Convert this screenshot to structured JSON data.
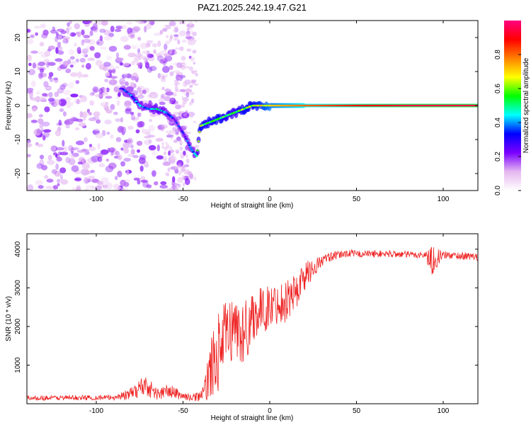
{
  "title": "PAZ1.2025.242.19.47.G21",
  "chart_data": [
    {
      "type": "heatmap",
      "title": "PAZ1.2025.242.19.47.G21",
      "xlabel": "Height of straight line (km)",
      "ylabel": "Frequency (Hz)",
      "xlim": [
        -140,
        120
      ],
      "ylim": [
        -25,
        25
      ],
      "xticks": [
        -100,
        -50,
        0,
        50,
        100
      ],
      "yticks": [
        -20,
        -10,
        0,
        10,
        20
      ],
      "colorbar": {
        "label": "Normalized spectral amplitude",
        "range": [
          0.0,
          1.0
        ],
        "ticks": [
          0.0,
          0.2,
          0.4,
          0.6,
          0.8
        ],
        "colors": [
          "#ffffff",
          "#e6b8f0",
          "#7b00ff",
          "#0000ff",
          "#00ffff",
          "#00ff00",
          "#ffff00",
          "#ff8000",
          "#ff0000",
          "#ff0080"
        ]
      },
      "ridge": {
        "x": [
          -85,
          -80,
          -75,
          -70,
          -65,
          -60,
          -55,
          -50,
          -45,
          -42,
          -40,
          -35,
          -30,
          -25,
          -20,
          -15,
          -10,
          -5,
          0,
          10,
          20,
          40,
          60,
          80,
          90,
          100,
          120
        ],
        "freq": [
          5,
          3,
          0,
          -1,
          -1,
          -2,
          -4,
          -8,
          -13,
          -15,
          -6,
          -5,
          -4,
          -3,
          -2,
          -1,
          0,
          0,
          0,
          0,
          0,
          0,
          0,
          0,
          0,
          0,
          0
        ],
        "amplitude": [
          0.3,
          0.35,
          0.4,
          0.35,
          0.45,
          0.4,
          0.3,
          0.3,
          0.35,
          0.45,
          0.6,
          0.55,
          0.6,
          0.55,
          0.5,
          0.6,
          0.6,
          0.65,
          0.7,
          0.75,
          0.8,
          0.85,
          0.9,
          0.95,
          0.95,
          0.95,
          0.95
        ]
      }
    },
    {
      "type": "line",
      "xlabel": "Height of straight line (km)",
      "ylabel": "SNR (10 * v/v)",
      "xlim": [
        -140,
        120
      ],
      "ylim": [
        0,
        4400
      ],
      "xticks": [
        -100,
        -50,
        0,
        50,
        100
      ],
      "yticks": [
        1000,
        2000,
        3000,
        4000
      ],
      "color": "#ee2222",
      "envelope": {
        "x": [
          -140,
          -90,
          -80,
          -72,
          -65,
          -58,
          -50,
          -45,
          -38,
          -35,
          -30,
          -25,
          -20,
          -15,
          -10,
          -5,
          0,
          5,
          10,
          15,
          20,
          25,
          30,
          35,
          40,
          45,
          50,
          60,
          70,
          80,
          90,
          93,
          95,
          100,
          110,
          120
        ],
        "mean": [
          150,
          160,
          260,
          500,
          250,
          330,
          200,
          150,
          250,
          800,
          1300,
          1800,
          2000,
          1750,
          2300,
          2400,
          2500,
          2600,
          2700,
          2900,
          3300,
          3500,
          3700,
          3800,
          3850,
          3900,
          3880,
          3880,
          3880,
          3860,
          3850,
          3700,
          3750,
          3850,
          3830,
          3800
        ],
        "spread": [
          60,
          70,
          150,
          300,
          160,
          200,
          100,
          80,
          200,
          700,
          1000,
          900,
          800,
          900,
          700,
          600,
          600,
          500,
          600,
          500,
          400,
          250,
          150,
          120,
          100,
          100,
          90,
          90,
          90,
          90,
          90,
          450,
          300,
          100,
          100,
          100
        ]
      }
    }
  ]
}
